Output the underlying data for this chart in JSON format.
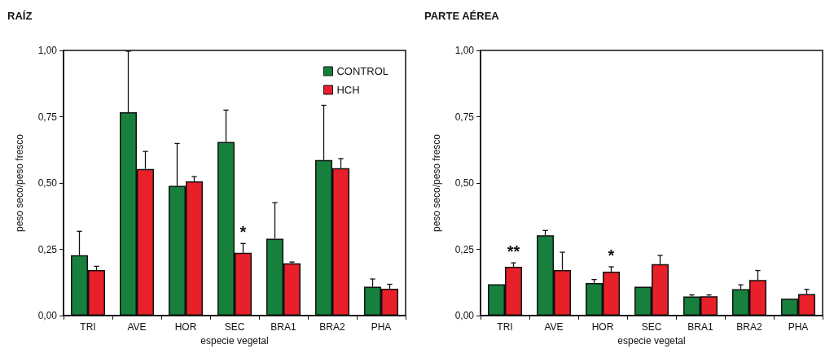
{
  "chart_data": [
    {
      "type": "bar",
      "title": "RAÍZ",
      "xlabel": "especie vegetal",
      "ylabel": "peso seco/peso fresco",
      "categories": [
        "TRI",
        "AVE",
        "HOR",
        "SEC",
        "BRA1",
        "BRA2",
        "PHA"
      ],
      "series": [
        {
          "name": "CONTROL",
          "color": "#17803d",
          "values": [
            0.228,
            0.767,
            0.489,
            0.655,
            0.29,
            0.587,
            0.109
          ],
          "errors": [
            [
              0.228,
              0.318
            ],
            [
              0.767,
              0.997
            ],
            [
              0.489,
              0.649
            ],
            [
              0.655,
              0.775
            ],
            [
              0.29,
              0.426
            ],
            [
              0.587,
              0.793
            ],
            [
              0.109,
              0.138
            ]
          ]
        },
        {
          "name": "HCH",
          "color": "#e8202a",
          "values": [
            0.172,
            0.553,
            0.506,
            0.237,
            0.197,
            0.556,
            0.101
          ],
          "errors": [
            [
              0.172,
              0.186
            ],
            [
              0.553,
              0.619
            ],
            [
              0.506,
              0.524
            ],
            [
              0.237,
              0.272
            ],
            [
              0.197,
              0.202
            ],
            [
              0.556,
              0.592
            ],
            [
              0.101,
              0.118
            ]
          ]
        }
      ],
      "ylim": [
        0,
        1
      ],
      "yticks": [
        {
          "value": 0,
          "label": "0,00"
        },
        {
          "value": 0.25,
          "label": "0,25"
        },
        {
          "value": 0.5,
          "label": "0,50"
        },
        {
          "value": 0.75,
          "label": "0,75"
        },
        {
          "value": 1,
          "label": "1,00"
        }
      ],
      "annotations": [
        {
          "text": "*",
          "x": "SEC",
          "y": 0.272
        }
      ],
      "grid": false,
      "legend": "top right"
    },
    {
      "type": "bar",
      "title": "PARTE AÉREA",
      "xlabel": "especie vegetal",
      "ylabel": "peso seco/peso fresco",
      "categories": [
        "TRI",
        "AVE",
        "HOR",
        "SEC",
        "BRA1",
        "BRA2",
        "PHA"
      ],
      "series": [
        {
          "color": "#17803d",
          "values": [
            0.118,
            0.303,
            0.123,
            0.109,
            0.072,
            0.1,
            0.064
          ],
          "errors": [
            null,
            [
              0.303,
              0.321
            ],
            [
              0.123,
              0.136
            ],
            null,
            [
              0.072,
              0.078
            ],
            [
              0.1,
              0.116
            ],
            null
          ]
        },
        {
          "color": "#e8202a",
          "values": [
            0.184,
            0.172,
            0.166,
            0.194,
            0.073,
            0.134,
            0.081
          ],
          "errors": [
            [
              0.184,
              0.199
            ],
            [
              0.172,
              0.239
            ],
            [
              0.166,
              0.184
            ],
            [
              0.194,
              0.227
            ],
            [
              0.073,
              0.078
            ],
            [
              0.134,
              0.17
            ],
            [
              0.081,
              0.099
            ]
          ]
        }
      ],
      "ylim": [
        0,
        1
      ],
      "yticks": [
        {
          "value": 0,
          "label": "0,00"
        },
        {
          "value": 0.25,
          "label": "0,25"
        },
        {
          "value": 0.5,
          "label": "0,50"
        },
        {
          "value": 0.75,
          "label": "0,75"
        },
        {
          "value": 1,
          "label": "1,00"
        }
      ],
      "annotations": [
        {
          "text": "**",
          "x": "TRI",
          "y": 0.184
        },
        {
          "text": "*",
          "x": "HOR",
          "y": 0.166
        }
      ],
      "grid": false,
      "legend": false
    }
  ]
}
